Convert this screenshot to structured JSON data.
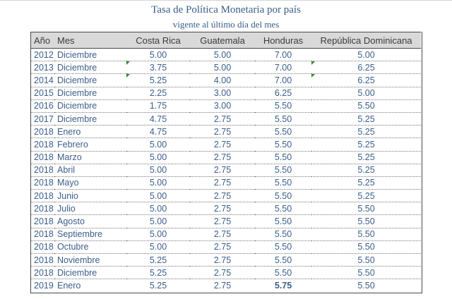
{
  "title": "Tasa de Política Monetaria por país",
  "subtitle": "vigente al último día del mes",
  "headers": {
    "year": "Año",
    "month": "Mes",
    "costa_rica": "Costa Rica",
    "guatemala": "Guatemala",
    "honduras": "Honduras",
    "dominicana": "República Dominicana"
  },
  "rows": [
    {
      "year": "2012",
      "month": "Diciembre",
      "cr": "5.00",
      "gt": "5.00",
      "hn": "7.00",
      "do": "5.00"
    },
    {
      "year": "2013",
      "month": "Diciembre",
      "cr": "3.75",
      "gt": "5.00",
      "hn": "7.00",
      "do": "6.25"
    },
    {
      "year": "2014",
      "month": "Diciembre",
      "cr": "5.25",
      "gt": "4.00",
      "hn": "7.00",
      "do": "6.25"
    },
    {
      "year": "2015",
      "month": "Diciembre",
      "cr": "2.25",
      "gt": "3.00",
      "hn": "6.25",
      "do": "5.00"
    },
    {
      "year": "2016",
      "month": "Diciembre",
      "cr": "1.75",
      "gt": "3.00",
      "hn": "5.50",
      "do": "5.50"
    },
    {
      "year": "2017",
      "month": "Diciembre",
      "cr": "4.75",
      "gt": "2.75",
      "hn": "5.50",
      "do": "5.25"
    },
    {
      "year": "2018",
      "month": "Enero",
      "cr": "4.75",
      "gt": "2.75",
      "hn": "5.50",
      "do": "5.25"
    },
    {
      "year": "2018",
      "month": "Febrero",
      "cr": "5.00",
      "gt": "2.75",
      "hn": "5.50",
      "do": "5.25"
    },
    {
      "year": "2018",
      "month": "Marzo",
      "cr": "5.00",
      "gt": "2.75",
      "hn": "5.50",
      "do": "5.25"
    },
    {
      "year": "2018",
      "month": "Abril",
      "cr": "5.00",
      "gt": "2.75",
      "hn": "5.50",
      "do": "5.25"
    },
    {
      "year": "2018",
      "month": "Mayo",
      "cr": "5.00",
      "gt": "2.75",
      "hn": "5.50",
      "do": "5.25"
    },
    {
      "year": "2018",
      "month": "Junio",
      "cr": "5.00",
      "gt": "2.75",
      "hn": "5.50",
      "do": "5.25"
    },
    {
      "year": "2018",
      "month": "Julio",
      "cr": "5.00",
      "gt": "2.75",
      "hn": "5.50",
      "do": "5.50"
    },
    {
      "year": "2018",
      "month": "Agosto",
      "cr": "5.00",
      "gt": "2.75",
      "hn": "5.50",
      "do": "5.50"
    },
    {
      "year": "2018",
      "month": "Septiembre",
      "cr": "5.00",
      "gt": "2.75",
      "hn": "5.50",
      "do": "5.50"
    },
    {
      "year": "2018",
      "month": "Octubre",
      "cr": "5.00",
      "gt": "2.75",
      "hn": "5.50",
      "do": "5.50"
    },
    {
      "year": "2018",
      "month": "Noviembre",
      "cr": "5.25",
      "gt": "2.75",
      "hn": "5.50",
      "do": "5.50"
    },
    {
      "year": "2018",
      "month": "Diciembre",
      "cr": "5.25",
      "gt": "2.75",
      "hn": "5.50",
      "do": "5.50"
    },
    {
      "year": "2019",
      "month": "Enero",
      "cr": "5.25",
      "gt": "2.75",
      "hn": "5.75",
      "do": "5.50"
    }
  ]
}
